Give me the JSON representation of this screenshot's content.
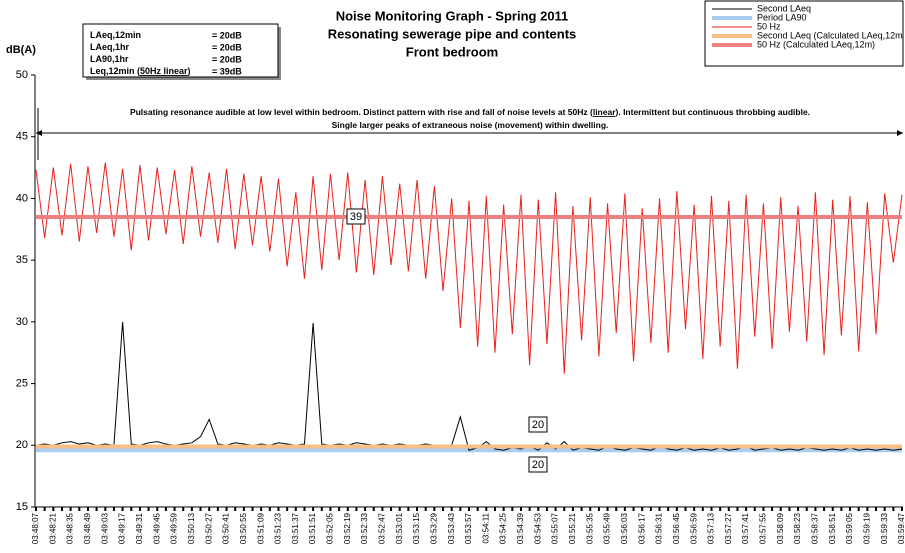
{
  "chart_data": {
    "type": "line",
    "title": [
      "Noise Monitoring Graph - Spring 2011",
      "Resonating sewerage pipe and contents",
      "Front bedroom"
    ],
    "ylabel": "dB(A)",
    "ylim": [
      15,
      50
    ],
    "yticks": [
      15,
      20,
      25,
      30,
      35,
      40,
      45,
      50
    ],
    "info_box": [
      {
        "label": [
          "LAeq,12min"
        ],
        "value": "= 20dB"
      },
      {
        "label": [
          "LAeq,1hr"
        ],
        "value": "= 20dB"
      },
      {
        "label": [
          "LA90,1hr"
        ],
        "value": "= 20dB"
      },
      {
        "label": [
          "Leq,12min (",
          "50Hz linear",
          ")"
        ],
        "value": "= 39dB"
      }
    ],
    "annotation": [
      [
        "Pulsating resonance audible at low level within bedroom. Distinct pattern with rise and fall of noise levels at 50Hz (",
        "linear",
        "). Intermittent but continuous throbbing audible."
      ],
      [
        "Single larger peaks of extraneous noise (movement) within dwelling."
      ]
    ],
    "categories": [
      "03:48:07",
      null,
      "03:48:21",
      null,
      "03:48:35",
      null,
      "03:48:49",
      null,
      "03:49:03",
      null,
      "03:49:17",
      null,
      "03:49:31",
      null,
      "03:49:45",
      null,
      "03:49:59",
      null,
      "03:50:13",
      null,
      "03:50:27",
      null,
      "03:50:41",
      null,
      "03:50:55",
      null,
      "03:51:09",
      null,
      "03:51:23",
      null,
      "03:51:37",
      null,
      "03:51:51",
      null,
      "03:52:05",
      null,
      "03:52:19",
      null,
      "03:52:33",
      null,
      "03:52:47",
      null,
      "03:53:01",
      null,
      "03:53:15",
      null,
      "03:53:29",
      null,
      "03:53:43",
      null,
      "03:53:57",
      null,
      "03:54:11",
      null,
      "03:54:25",
      null,
      "03:54:39",
      null,
      "03:54:53",
      null,
      "03:55:07",
      null,
      "03:55:21",
      null,
      "03:55:35",
      null,
      "03:55:49",
      null,
      "03:56:03",
      null,
      "03:56:17",
      null,
      "03:56:31",
      null,
      "03:56:45",
      null,
      "03:56:59",
      null,
      "03:57:13",
      null,
      "03:57:27",
      null,
      "03:57:41",
      null,
      "03:57:55",
      null,
      "03:58:09",
      null,
      "03:58:23",
      null,
      "03:58:37",
      null,
      "03:58:51",
      null,
      "03:59:05",
      null,
      "03:59:19",
      null,
      "03:59:33",
      null,
      "03:59:47"
    ],
    "series": [
      {
        "name": "Second LAeq",
        "color": "#000000",
        "width": 1,
        "values": [
          20.0,
          20.1,
          20.0,
          20.2,
          20.3,
          20.1,
          20.2,
          20.0,
          20.1,
          20.0,
          30.0,
          20.1,
          20.0,
          20.2,
          20.3,
          20.1,
          20.0,
          20.1,
          20.2,
          20.7,
          22.1,
          20.1,
          20.0,
          20.2,
          20.1,
          20.0,
          20.1,
          20.0,
          20.2,
          20.1,
          20.0,
          20.1,
          29.9,
          20.1,
          20.0,
          20.1,
          20.0,
          20.2,
          20.1,
          20.0,
          20.1,
          20.0,
          20.1,
          20.0,
          20.0,
          20.1,
          20.0,
          19.9,
          20.0,
          22.3,
          19.6,
          19.8,
          20.3,
          19.7,
          19.6,
          19.8,
          19.7,
          19.9,
          19.6,
          20.2,
          19.7,
          20.3,
          19.6,
          19.8,
          19.7,
          19.6,
          19.9,
          19.7,
          19.6,
          19.8,
          19.7,
          19.6,
          19.9,
          19.7,
          19.6,
          19.8,
          19.6,
          19.7,
          19.6,
          19.8,
          19.6,
          19.7,
          19.9,
          19.6,
          19.7,
          19.8,
          19.6,
          19.7,
          19.6,
          19.8,
          19.7,
          19.6,
          19.7,
          19.6,
          19.8,
          19.6,
          19.7,
          19.6,
          19.7,
          19.6,
          19.7
        ]
      },
      {
        "name": "Period LA90",
        "color": "#a8cdf0",
        "width": 4,
        "value": 19.6,
        "value_label": "20"
      },
      {
        "name": "50 Hz",
        "color": "#e8201c",
        "width": 1,
        "values": [
          42.3,
          36.8,
          42.5,
          37.0,
          42.8,
          36.5,
          42.6,
          37.2,
          42.9,
          36.9,
          42.4,
          35.8,
          42.7,
          36.6,
          42.5,
          37.1,
          42.3,
          36.3,
          42.6,
          36.9,
          42.1,
          36.4,
          42.4,
          35.9,
          42.0,
          36.2,
          41.8,
          35.7,
          41.6,
          34.5,
          40.5,
          33.5,
          41.8,
          34.2,
          42.0,
          35.0,
          42.1,
          34.0,
          41.5,
          33.8,
          41.8,
          34.6,
          41.2,
          34.1,
          41.5,
          33.5,
          41.0,
          32.5,
          40.0,
          29.5,
          39.8,
          28.0,
          40.2,
          27.5,
          39.5,
          29.0,
          40.3,
          26.5,
          39.9,
          28.2,
          40.5,
          25.8,
          39.4,
          28.5,
          40.1,
          27.2,
          39.6,
          29.1,
          40.4,
          26.8,
          39.2,
          28.3,
          40.0,
          27.5,
          40.6,
          29.4,
          39.5,
          27.0,
          40.2,
          28.0,
          39.8,
          26.2,
          40.3,
          28.8,
          39.6,
          27.8,
          40.1,
          29.2,
          39.4,
          28.4,
          40.5,
          27.3,
          39.9,
          28.9,
          40.2,
          27.6,
          39.7,
          29.0,
          40.4,
          34.8,
          40.3
        ]
      },
      {
        "name": "Second LAeq (Calculated LAeq,12m",
        "color": "#f7bf86",
        "width": 4,
        "value": 19.9,
        "value_label": "20"
      },
      {
        "name": "50 Hz (Calculated LAeq,12m)",
        "color": "#f08080",
        "width": 4,
        "value": 38.5,
        "value_label": "39"
      }
    ]
  }
}
